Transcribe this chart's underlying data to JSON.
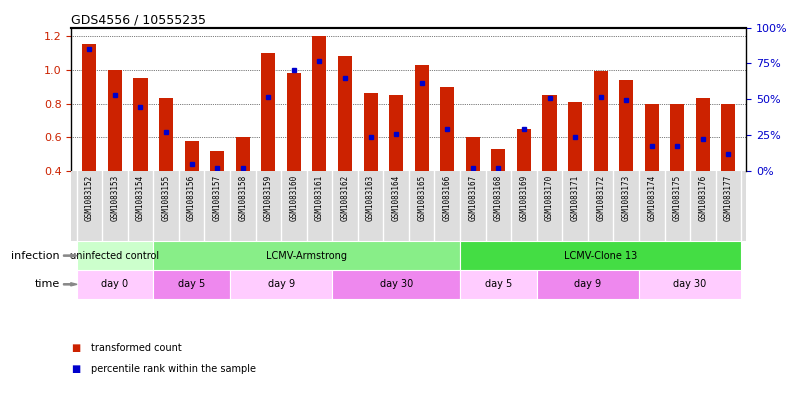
{
  "title": "GDS4556 / 10555235",
  "samples": [
    "GSM1083152",
    "GSM1083153",
    "GSM1083154",
    "GSM1083155",
    "GSM1083156",
    "GSM1083157",
    "GSM1083158",
    "GSM1083159",
    "GSM1083160",
    "GSM1083161",
    "GSM1083162",
    "GSM1083163",
    "GSM1083164",
    "GSM1083165",
    "GSM1083166",
    "GSM1083167",
    "GSM1083168",
    "GSM1083169",
    "GSM1083170",
    "GSM1083171",
    "GSM1083172",
    "GSM1083173",
    "GSM1083174",
    "GSM1083175",
    "GSM1083176",
    "GSM1083177"
  ],
  "bar_heights": [
    1.15,
    1.0,
    0.95,
    0.83,
    0.58,
    0.52,
    0.6,
    1.1,
    0.98,
    1.2,
    1.08,
    0.86,
    0.85,
    1.03,
    0.9,
    0.6,
    0.53,
    0.65,
    0.85,
    0.81,
    0.99,
    0.94,
    0.8,
    0.8,
    0.83,
    0.8
  ],
  "blue_dot_heights": [
    1.12,
    0.85,
    0.78,
    0.63,
    0.44,
    0.42,
    0.42,
    0.84,
    1.0,
    1.05,
    0.95,
    0.6,
    0.62,
    0.92,
    0.65,
    0.42,
    0.42,
    0.65,
    0.83,
    0.6,
    0.84,
    0.82,
    0.55,
    0.55,
    0.59,
    0.5
  ],
  "bar_color": "#cc2200",
  "dot_color": "#0000cc",
  "ylim_left": [
    0.4,
    1.25
  ],
  "ylim_right": [
    0,
    100
  ],
  "yticks_left": [
    0.4,
    0.6,
    0.8,
    1.0,
    1.2
  ],
  "yticks_right": [
    0,
    25,
    50,
    75,
    100
  ],
  "ytick_labels_right": [
    "0%",
    "25%",
    "50%",
    "75%",
    "100%"
  ],
  "infection_groups": [
    {
      "label": "uninfected control",
      "start": 0,
      "end": 3,
      "color": "#ccffcc"
    },
    {
      "label": "LCMV-Armstrong",
      "start": 3,
      "end": 15,
      "color": "#88ee88"
    },
    {
      "label": "LCMV-Clone 13",
      "start": 15,
      "end": 26,
      "color": "#44dd44"
    }
  ],
  "time_groups": [
    {
      "label": "day 0",
      "start": 0,
      "end": 3,
      "color": "#ffccff"
    },
    {
      "label": "day 5",
      "start": 3,
      "end": 6,
      "color": "#ee88ee"
    },
    {
      "label": "day 9",
      "start": 6,
      "end": 10,
      "color": "#ffccff"
    },
    {
      "label": "day 30",
      "start": 10,
      "end": 15,
      "color": "#ee88ee"
    },
    {
      "label": "day 5",
      "start": 15,
      "end": 18,
      "color": "#ffccff"
    },
    {
      "label": "day 9",
      "start": 18,
      "end": 22,
      "color": "#ee88ee"
    },
    {
      "label": "day 30",
      "start": 22,
      "end": 26,
      "color": "#ffccff"
    }
  ],
  "legend_items": [
    {
      "label": "transformed count",
      "color": "#cc2200"
    },
    {
      "label": "percentile rank within the sample",
      "color": "#0000cc"
    }
  ],
  "bar_width": 0.55,
  "label_area_color": "#dddddd",
  "fig_width": 7.94,
  "fig_height": 3.93,
  "dpi": 100
}
